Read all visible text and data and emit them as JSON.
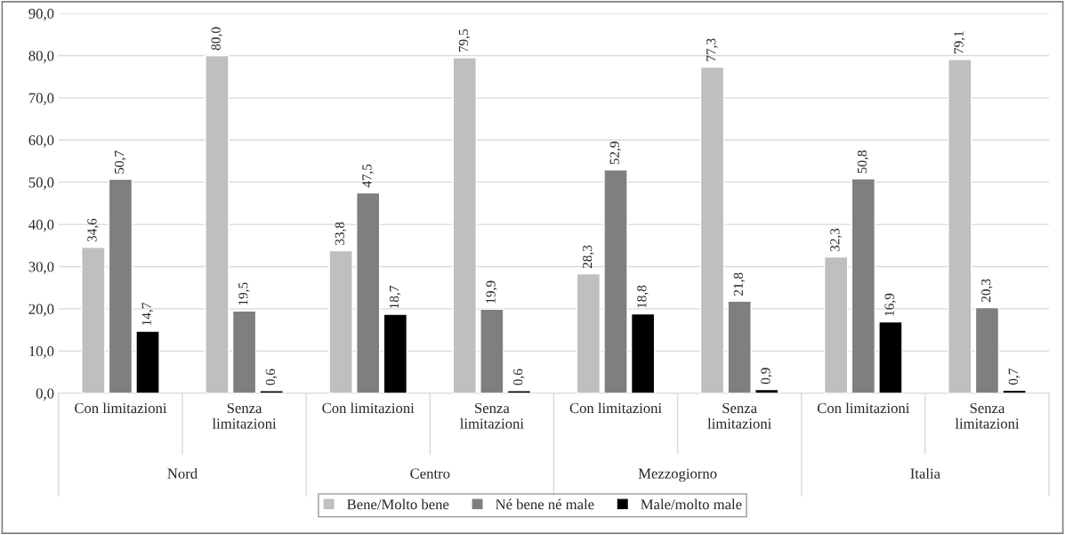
{
  "chart_data": {
    "type": "bar",
    "categories": [
      "Con limitazioni",
      "Senza limitazioni",
      "Con limitazioni",
      "Senza limitazioni",
      "Con limitazioni",
      "Senza limitazioni",
      "Con limitazioni",
      "Senza limitazioni"
    ],
    "annotations": [
      "Nord",
      "Centro",
      "Mezzogiorno",
      "Italia"
    ],
    "series": [
      {
        "name": "Bene/Molto bene",
        "color": "#bfbfbf",
        "values": [
          34.6,
          80.0,
          33.8,
          79.5,
          28.3,
          77.3,
          32.3,
          79.1
        ],
        "value_labels": [
          "34,6",
          "80,0",
          "33,8",
          "79,5",
          "28,3",
          "77,3",
          "32,3",
          "79,1"
        ]
      },
      {
        "name": "Né bene né male",
        "color": "#7f7f7f",
        "values": [
          50.7,
          19.5,
          47.5,
          19.9,
          52.9,
          21.8,
          50.8,
          20.3
        ],
        "value_labels": [
          "50,7",
          "19,5",
          "47,5",
          "19,9",
          "52,9",
          "21,8",
          "50,8",
          "20,3"
        ]
      },
      {
        "name": "Male/molto male",
        "color": "#000000",
        "values": [
          14.7,
          0.6,
          18.7,
          0.6,
          18.8,
          0.9,
          16.9,
          0.7
        ],
        "value_labels": [
          "14,7",
          "0,6",
          "18,7",
          "0,6",
          "18,8",
          "0,9",
          "16,9",
          "0,7"
        ]
      }
    ],
    "ylim": [
      0,
      90
    ],
    "yticks": [
      {
        "value": 0,
        "label": "0,0"
      },
      {
        "value": 10,
        "label": "10,0"
      },
      {
        "value": 20,
        "label": "20,0"
      },
      {
        "value": 30,
        "label": "30,0"
      },
      {
        "value": 40,
        "label": "40,0"
      },
      {
        "value": 50,
        "label": "50,0"
      },
      {
        "value": 60,
        "label": "60,0"
      },
      {
        "value": 70,
        "label": "70,0"
      },
      {
        "value": 80,
        "label": "80,0"
      },
      {
        "value": 90,
        "label": "90,0"
      }
    ],
    "grid": "y",
    "legend": "bottom"
  }
}
